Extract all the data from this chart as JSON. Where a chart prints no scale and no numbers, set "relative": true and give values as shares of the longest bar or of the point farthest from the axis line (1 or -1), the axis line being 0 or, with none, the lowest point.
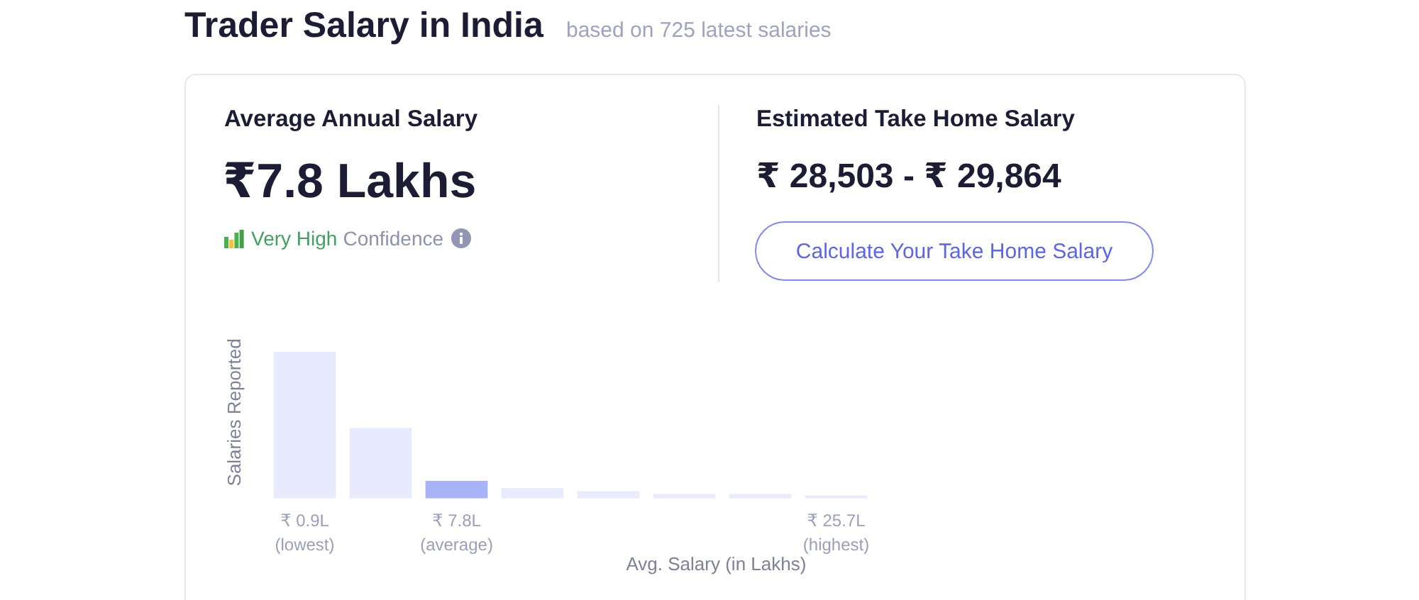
{
  "chart_data": {
    "type": "bar",
    "title": "Trader Salary in India",
    "subtitle": "based on 725 latest salaries",
    "categories": [
      "₹ 0.9L\n(lowest)",
      null,
      "₹ 7.8L\n(average)",
      null,
      null,
      null,
      null,
      "₹ 25.7L\n(highest)"
    ],
    "values": [
      1,
      0.48,
      0.12,
      0.07,
      0.05,
      0.03,
      0.03,
      0.02
    ],
    "colors": [
      "#e8eafd",
      "#e8eafd",
      "#a9b3f8",
      "#e8eafd",
      "#e8eafd",
      "#e8eafd",
      "#e8eafd",
      "#e8eafd"
    ],
    "relative": true,
    "xlabel": "Avg. Salary (in Lakhs)",
    "ylabel": "Salaries Reported",
    "annotations": [
      "Average Annual Salary",
      "₹7.8 Lakhs",
      "Very High",
      "Confidence",
      "Estimated Take Home Salary",
      "₹ 28,503 - ₹ 29,864",
      "Calculate Your Take Home Salary"
    ]
  }
}
